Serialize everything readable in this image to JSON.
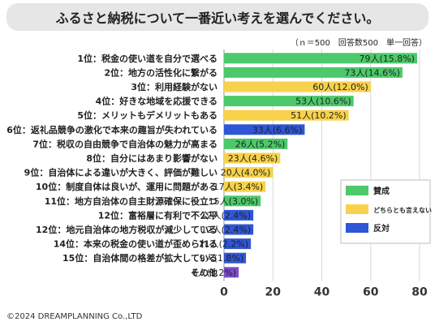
{
  "title": "ふるさと納税について一番近い考えを選んでください。",
  "sample_note": "（ｎ＝500　回答数500　単一回答）",
  "copyright": "©2024 DREAMPLANNING Co.,LTD",
  "colors": {
    "agree": "#4cc96a",
    "neutral": "#f7d24a",
    "oppose": "#2f56d6",
    "other": "#7d4dc8"
  },
  "chart_data": {
    "type": "bar",
    "orientation": "horizontal",
    "xlim": [
      0,
      80
    ],
    "xticks": [
      "0",
      "20",
      "40",
      "60",
      "80"
    ],
    "grid": true,
    "legend_position": "right",
    "legend": [
      {
        "key": "agree",
        "label": "賛成"
      },
      {
        "key": "neutral",
        "label": "どちらとも言えない"
      },
      {
        "key": "oppose",
        "label": "反対"
      }
    ],
    "categories": [
      "1位：税金の使い道を自分で選べる",
      "2位：地方の活性化に繋がる",
      "3位：利用経験がない",
      "4位：好きな地域を応援できる",
      "5位：メリットもデメリットもある",
      "6位：返礼品競争の激化で本来の趣旨が失われている",
      "7位：税収の自由競争で自治体の魅力が高まる",
      "8位：自分にはあまり影響がない",
      "9位：自治体による違いが大きく、評価が難しい",
      "10位：制度自体は良いが、運用に問題がある",
      "11位：地方自治体の自主財源確保に役立つ",
      "12位：富裕層に有利で不公平",
      "12位：地元自治体の地方税収が減少している",
      "14位：本来の税金の使い道が歪められる",
      "15位：自治体間の格差が拡大している",
      "その他"
    ],
    "values": [
      79,
      73,
      60,
      53,
      51,
      33,
      26,
      23,
      20,
      17,
      15,
      12,
      12,
      11,
      9,
      6
    ],
    "groups": [
      "agree",
      "agree",
      "neutral",
      "agree",
      "neutral",
      "oppose",
      "agree",
      "neutral",
      "neutral",
      "neutral",
      "agree",
      "oppose",
      "oppose",
      "oppose",
      "oppose",
      "other"
    ],
    "data_labels": [
      "79人(15.8%)",
      "73人(14.6%)",
      "60人(12.0%)",
      "53人(10.6%)",
      "51人(10.2%)",
      "33人(6.6%)",
      "26人(5.2%)",
      "23人(4.6%)",
      "20人(4.0%)",
      "17人(3.4%)",
      "15人(3.0%)",
      "12人(2.4%)",
      "12人(2.4%)",
      "11人(2.2%)",
      "9人(1.8%)",
      "6人(1.2%)"
    ]
  }
}
